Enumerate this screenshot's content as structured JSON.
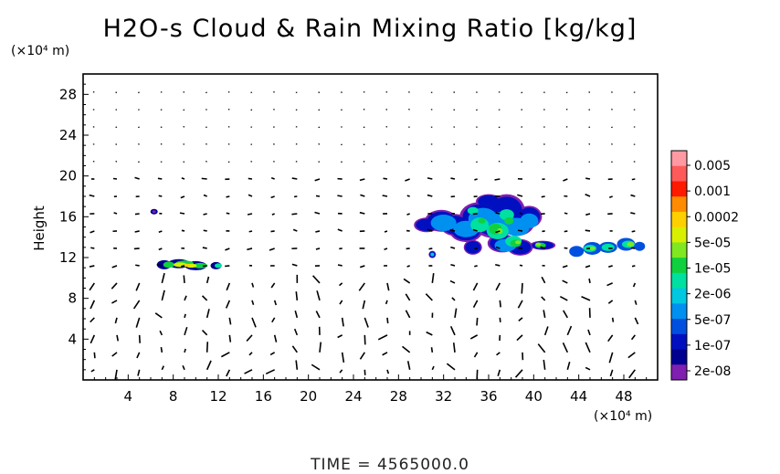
{
  "chart_data": {
    "type": "heatmap",
    "title": "H2O-s Cloud & Rain Mixing Ratio [kg/kg]",
    "ylabel": "Height",
    "x_unit": "(×10⁴ m)",
    "y_unit": "(×10⁴ m)",
    "xlim": [
      0,
      51
    ],
    "ylim": [
      0,
      30
    ],
    "x_ticks": [
      "4",
      "8",
      "12",
      "16",
      "20",
      "24",
      "28",
      "32",
      "36",
      "40",
      "44",
      "48"
    ],
    "y_ticks": [
      "4",
      "8",
      "12",
      "16",
      "20",
      "24",
      "28"
    ],
    "grid": false,
    "colorbar": {
      "labels": [
        "0.005",
        "0.001",
        "0.0002",
        "5e-05",
        "1e-05",
        "2e-06",
        "5e-07",
        "1e-07",
        "2e-08"
      ],
      "colors": [
        "#ff9aa2",
        "#ff5a5a",
        "#ff1a00",
        "#ff8c00",
        "#ffd000",
        "#d8f000",
        "#80e820",
        "#10d040",
        "#00e0a0",
        "#00c8e0",
        "#0090f0",
        "#0050e0",
        "#0010c0",
        "#000090",
        "#8020b0"
      ]
    },
    "cloud_regions": [
      {
        "x": [
          6.5,
          12.5
        ],
        "y": [
          10.5,
          12.2
        ],
        "max_ratio": "5e-05"
      },
      {
        "x": [
          6.0,
          6.6
        ],
        "y": [
          16.2,
          16.8
        ],
        "max_ratio": "2e-08"
      },
      {
        "x": [
          29.5,
          40.0
        ],
        "y": [
          12.0,
          18.5
        ],
        "max_ratio": "5e-05"
      },
      {
        "x": [
          43.0,
          50.0
        ],
        "y": [
          12.0,
          14.0
        ],
        "max_ratio": "1e-05"
      }
    ],
    "time_label": "TIME  =  4565000.0"
  }
}
